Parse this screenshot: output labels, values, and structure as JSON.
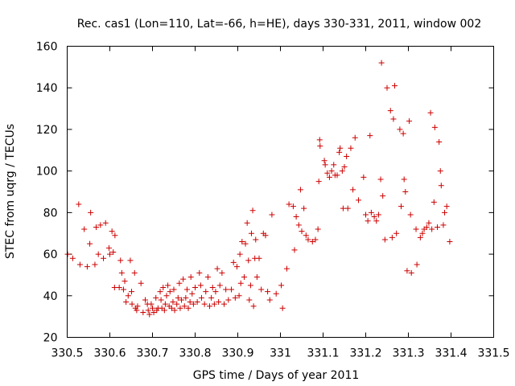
{
  "chart_data": {
    "type": "scatter",
    "title": "Rec. cas1 (Lon=110, Lat=-66, h=HE), days 330-331, 2011, window 002",
    "xlabel": "GPS time / Days of year 2011",
    "ylabel": "STEC from uqrg / TECUs",
    "xlim": [
      330.5,
      331.5
    ],
    "ylim": [
      20,
      160
    ],
    "xticks": [
      330.5,
      330.6,
      330.7,
      330.8,
      330.9,
      331,
      331.1,
      331.2,
      331.3,
      331.4,
      331.5
    ],
    "xtick_labels": [
      "330.5",
      "330.6",
      "330.7",
      "330.8",
      "330.9",
      "331",
      "331.1",
      "331.2",
      "331.3",
      "331.4",
      "331.5"
    ],
    "yticks": [
      20,
      40,
      60,
      80,
      100,
      120,
      140,
      160
    ],
    "ytick_labels": [
      "20",
      "40",
      "60",
      "80",
      "100",
      "120",
      "140",
      "160"
    ],
    "grid": false,
    "marker": "+",
    "marker_color": "#cc0000",
    "series": [
      {
        "name": "STEC",
        "points": [
          [
            330.501,
            60
          ],
          [
            330.513,
            58
          ],
          [
            330.527,
            84
          ],
          [
            330.53,
            55
          ],
          [
            330.54,
            72
          ],
          [
            330.547,
            54
          ],
          [
            330.553,
            65
          ],
          [
            330.555,
            80
          ],
          [
            330.565,
            55
          ],
          [
            330.568,
            73
          ],
          [
            330.573,
            60
          ],
          [
            330.578,
            74
          ],
          [
            330.585,
            58
          ],
          [
            330.59,
            75
          ],
          [
            330.598,
            63
          ],
          [
            330.6,
            60
          ],
          [
            330.605,
            71
          ],
          [
            330.608,
            61
          ],
          [
            330.611,
            44
          ],
          [
            330.612,
            69
          ],
          [
            330.622,
            44
          ],
          [
            330.625,
            57
          ],
          [
            330.628,
            51
          ],
          [
            330.632,
            43
          ],
          [
            330.635,
            47
          ],
          [
            330.638,
            37
          ],
          [
            330.643,
            40
          ],
          [
            330.648,
            57
          ],
          [
            330.651,
            42
          ],
          [
            330.652,
            36
          ],
          [
            330.658,
            51
          ],
          [
            330.66,
            34
          ],
          [
            330.663,
            33
          ],
          [
            330.665,
            35
          ],
          [
            330.673,
            46
          ],
          [
            330.678,
            32
          ],
          [
            330.683,
            38
          ],
          [
            330.688,
            36
          ],
          [
            330.69,
            33
          ],
          [
            330.693,
            31
          ],
          [
            330.697,
            36
          ],
          [
            330.7,
            34
          ],
          [
            330.703,
            32
          ],
          [
            330.708,
            39
          ],
          [
            330.71,
            33
          ],
          [
            330.713,
            34
          ],
          [
            330.718,
            42
          ],
          [
            330.72,
            38
          ],
          [
            330.722,
            34
          ],
          [
            330.725,
            44
          ],
          [
            330.728,
            33
          ],
          [
            330.73,
            36
          ],
          [
            330.733,
            40
          ],
          [
            330.736,
            45
          ],
          [
            330.739,
            35
          ],
          [
            330.741,
            42
          ],
          [
            330.745,
            34
          ],
          [
            330.748,
            37
          ],
          [
            330.75,
            43
          ],
          [
            330.752,
            33
          ],
          [
            330.757,
            36
          ],
          [
            330.76,
            39
          ],
          [
            330.763,
            46
          ],
          [
            330.765,
            34
          ],
          [
            330.768,
            38
          ],
          [
            330.772,
            48
          ],
          [
            330.775,
            35
          ],
          [
            330.778,
            39
          ],
          [
            330.781,
            43
          ],
          [
            330.784,
            34
          ],
          [
            330.788,
            37
          ],
          [
            330.79,
            49
          ],
          [
            330.793,
            41
          ],
          [
            330.796,
            36
          ],
          [
            330.8,
            44
          ],
          [
            330.805,
            37
          ],
          [
            330.81,
            51
          ],
          [
            330.813,
            45
          ],
          [
            330.815,
            39
          ],
          [
            330.822,
            36
          ],
          [
            330.825,
            42
          ],
          [
            330.83,
            49
          ],
          [
            330.834,
            35
          ],
          [
            330.838,
            39
          ],
          [
            330.841,
            44
          ],
          [
            330.845,
            36
          ],
          [
            330.848,
            42
          ],
          [
            330.852,
            53
          ],
          [
            330.855,
            37
          ],
          [
            330.858,
            45
          ],
          [
            330.863,
            51
          ],
          [
            330.868,
            36
          ],
          [
            330.872,
            43
          ],
          [
            330.878,
            38
          ],
          [
            330.885,
            43
          ],
          [
            330.89,
            56
          ],
          [
            330.894,
            39
          ],
          [
            330.898,
            54
          ],
          [
            330.903,
            40
          ],
          [
            330.905,
            60
          ],
          [
            330.907,
            46
          ],
          [
            330.91,
            66
          ],
          [
            330.915,
            49
          ],
          [
            330.918,
            65
          ],
          [
            330.922,
            75
          ],
          [
            330.925,
            57
          ],
          [
            330.927,
            38
          ],
          [
            330.93,
            45
          ],
          [
            330.932,
            70
          ],
          [
            330.935,
            81
          ],
          [
            330.937,
            35
          ],
          [
            330.94,
            58
          ],
          [
            330.942,
            67
          ],
          [
            330.945,
            49
          ],
          [
            330.95,
            58
          ],
          [
            330.955,
            43
          ],
          [
            330.96,
            70
          ],
          [
            330.965,
            69
          ],
          [
            330.97,
            42
          ],
          [
            330.975,
            38
          ],
          [
            330.98,
            79
          ],
          [
            330.99,
            41
          ],
          [
            331.002,
            45
          ],
          [
            331.005,
            34
          ],
          [
            331.015,
            53
          ],
          [
            331.02,
            84
          ],
          [
            331.03,
            83
          ],
          [
            331.033,
            62
          ],
          [
            331.037,
            78
          ],
          [
            331.043,
            74
          ],
          [
            331.047,
            91
          ],
          [
            331.05,
            71
          ],
          [
            331.055,
            82
          ],
          [
            331.06,
            69
          ],
          [
            331.065,
            67
          ],
          [
            331.075,
            66
          ],
          [
            331.082,
            67
          ],
          [
            331.088,
            72
          ],
          [
            331.09,
            95
          ],
          [
            331.092,
            115
          ],
          [
            331.093,
            112
          ],
          [
            331.103,
            105
          ],
          [
            331.105,
            103
          ],
          [
            331.11,
            99
          ],
          [
            331.115,
            97
          ],
          [
            331.12,
            100
          ],
          [
            331.125,
            103
          ],
          [
            331.128,
            98
          ],
          [
            331.133,
            98
          ],
          [
            331.138,
            109
          ],
          [
            331.14,
            111
          ],
          [
            331.145,
            100
          ],
          [
            331.147,
            82
          ],
          [
            331.15,
            102
          ],
          [
            331.155,
            107
          ],
          [
            331.158,
            82
          ],
          [
            331.165,
            111
          ],
          [
            331.17,
            91
          ],
          [
            331.175,
            116
          ],
          [
            331.183,
            86
          ],
          [
            331.195,
            97
          ],
          [
            331.2,
            79
          ],
          [
            331.205,
            76
          ],
          [
            331.21,
            117
          ],
          [
            331.213,
            80
          ],
          [
            331.22,
            78
          ],
          [
            331.225,
            76
          ],
          [
            331.23,
            79
          ],
          [
            331.235,
            96
          ],
          [
            331.237,
            152
          ],
          [
            331.24,
            88
          ],
          [
            331.245,
            67
          ],
          [
            331.25,
            140
          ],
          [
            331.258,
            129
          ],
          [
            331.262,
            68
          ],
          [
            331.265,
            125
          ],
          [
            331.268,
            141
          ],
          [
            331.272,
            70
          ],
          [
            331.28,
            120
          ],
          [
            331.283,
            83
          ],
          [
            331.288,
            118
          ],
          [
            331.29,
            96
          ],
          [
            331.293,
            90
          ],
          [
            331.297,
            52
          ],
          [
            331.302,
            124
          ],
          [
            331.305,
            79
          ],
          [
            331.307,
            51
          ],
          [
            331.318,
            72
          ],
          [
            331.32,
            55
          ],
          [
            331.328,
            68
          ],
          [
            331.333,
            70
          ],
          [
            331.337,
            72
          ],
          [
            331.343,
            73
          ],
          [
            331.348,
            75
          ],
          [
            331.352,
            128
          ],
          [
            331.355,
            72
          ],
          [
            331.36,
            85
          ],
          [
            331.362,
            121
          ],
          [
            331.368,
            73
          ],
          [
            331.372,
            114
          ],
          [
            331.375,
            100
          ],
          [
            331.377,
            93
          ],
          [
            331.382,
            74
          ],
          [
            331.385,
            80
          ],
          [
            331.39,
            83
          ],
          [
            331.397,
            66
          ]
        ]
      }
    ]
  }
}
